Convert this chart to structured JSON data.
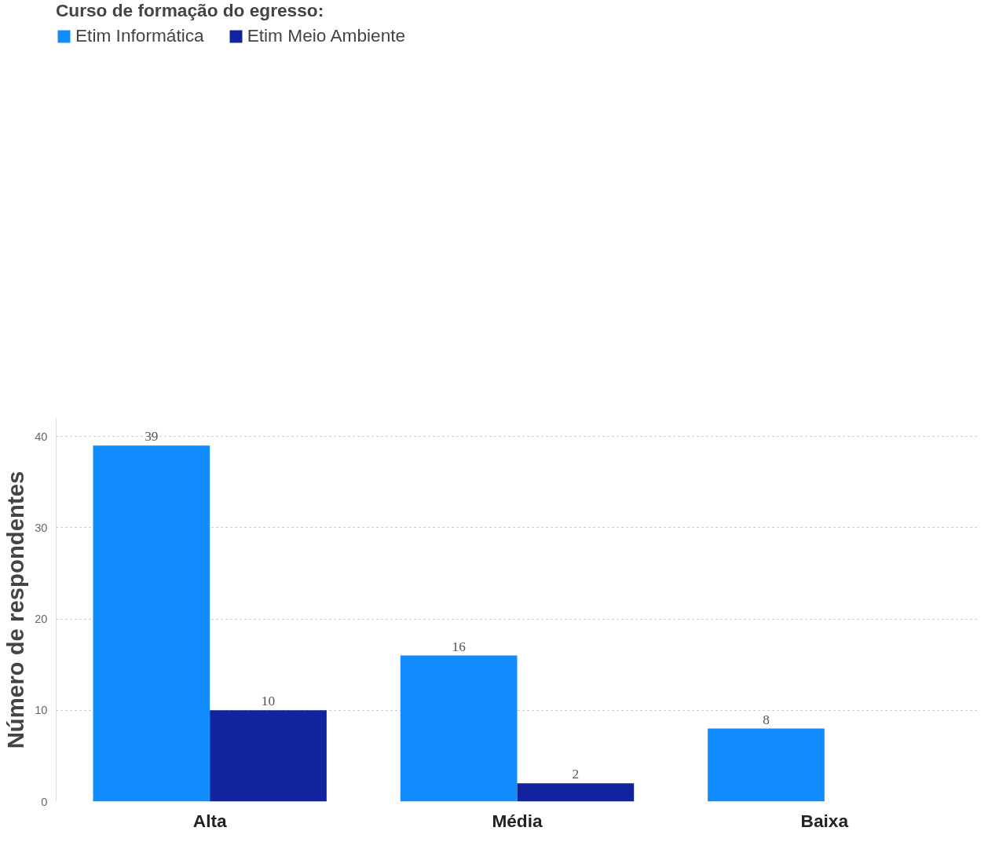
{
  "chart_data": {
    "type": "bar",
    "legend_title": "Curso de formação do egresso:",
    "ylabel": "Número de respondentes",
    "categories": [
      "Alta",
      "Média",
      "Baixa"
    ],
    "series": [
      {
        "name": "Etim Informática",
        "color": "#118dff",
        "values": [
          39,
          16,
          8
        ]
      },
      {
        "name": "Etim Meio Ambiente",
        "color": "#12239e",
        "values": [
          10,
          2,
          null
        ]
      }
    ],
    "ylim": [
      0,
      42
    ],
    "yticks": [
      0,
      10,
      20,
      30,
      40
    ],
    "grid": "y",
    "legend": "top",
    "data_labels": true
  }
}
